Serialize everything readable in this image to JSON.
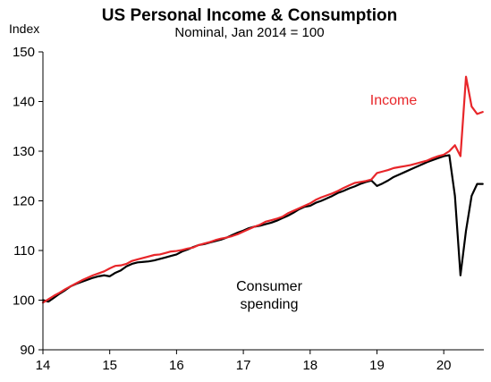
{
  "chart_data": {
    "type": "line",
    "title": "US Personal Income & Consumption",
    "subtitle": "Nominal,  Jan 2014 = 100",
    "ylabel": "Index",
    "xlabel": "",
    "ylim": [
      90,
      150
    ],
    "yticks": [
      90,
      100,
      110,
      120,
      130,
      140,
      150
    ],
    "xlim": [
      2014,
      2020.6
    ],
    "xticks": [
      2014,
      2015,
      2016,
      2017,
      2018,
      2019,
      2020
    ],
    "xtick_labels": [
      "14",
      "15",
      "16",
      "17",
      "18",
      "19",
      "20"
    ],
    "grid": false,
    "legend": "none",
    "series": [
      {
        "name": "Income",
        "color": "#e8262a",
        "x": [
          2014.0,
          2014.083,
          2014.167,
          2014.25,
          2014.333,
          2014.417,
          2014.5,
          2014.583,
          2014.667,
          2014.75,
          2014.833,
          2014.917,
          2015.0,
          2015.083,
          2015.167,
          2015.25,
          2015.333,
          2015.417,
          2015.5,
          2015.583,
          2015.667,
          2015.75,
          2015.833,
          2015.917,
          2016.0,
          2016.083,
          2016.167,
          2016.25,
          2016.333,
          2016.417,
          2016.5,
          2016.583,
          2016.667,
          2016.75,
          2016.833,
          2016.917,
          2017.0,
          2017.083,
          2017.167,
          2017.25,
          2017.333,
          2017.417,
          2017.5,
          2017.583,
          2017.667,
          2017.75,
          2017.833,
          2017.917,
          2018.0,
          2018.083,
          2018.167,
          2018.25,
          2018.333,
          2018.417,
          2018.5,
          2018.583,
          2018.667,
          2018.75,
          2018.833,
          2018.917,
          2019.0,
          2019.083,
          2019.167,
          2019.25,
          2019.333,
          2019.417,
          2019.5,
          2019.583,
          2019.667,
          2019.75,
          2019.833,
          2019.917,
          2020.0,
          2020.083,
          2020.167,
          2020.25,
          2020.333,
          2020.417,
          2020.5,
          2020.583
        ],
        "values": [
          99.5,
          100.2,
          100.9,
          101.5,
          102.2,
          102.8,
          103.4,
          104.0,
          104.5,
          105.0,
          105.4,
          105.8,
          106.4,
          106.9,
          107.0,
          107.3,
          107.9,
          108.2,
          108.5,
          108.8,
          109.1,
          109.2,
          109.5,
          109.8,
          109.9,
          110.1,
          110.4,
          110.6,
          111.1,
          111.4,
          111.7,
          112.1,
          112.4,
          112.6,
          112.9,
          113.3,
          113.8,
          114.3,
          114.8,
          115.2,
          115.8,
          116.1,
          116.4,
          116.8,
          117.5,
          118.0,
          118.5,
          119.0,
          119.5,
          120.2,
          120.7,
          121.1,
          121.5,
          122.0,
          122.6,
          123.1,
          123.6,
          123.8,
          124.0,
          124.3,
          125.6,
          125.9,
          126.2,
          126.6,
          126.8,
          127.0,
          127.2,
          127.5,
          127.8,
          128.1,
          128.6,
          129.0,
          129.3,
          130.0,
          131.2,
          129.0,
          145.0,
          139.0,
          137.5,
          137.9
        ]
      },
      {
        "name": "Consumer spending",
        "color": "#000000",
        "x": [
          2014.0,
          2014.083,
          2014.167,
          2014.25,
          2014.333,
          2014.417,
          2014.5,
          2014.583,
          2014.667,
          2014.75,
          2014.833,
          2014.917,
          2015.0,
          2015.083,
          2015.167,
          2015.25,
          2015.333,
          2015.417,
          2015.5,
          2015.583,
          2015.667,
          2015.75,
          2015.833,
          2015.917,
          2016.0,
          2016.083,
          2016.167,
          2016.25,
          2016.333,
          2016.417,
          2016.5,
          2016.583,
          2016.667,
          2016.75,
          2016.833,
          2016.917,
          2017.0,
          2017.083,
          2017.167,
          2017.25,
          2017.333,
          2017.417,
          2017.5,
          2017.583,
          2017.667,
          2017.75,
          2017.833,
          2017.917,
          2018.0,
          2018.083,
          2018.167,
          2018.25,
          2018.333,
          2018.417,
          2018.5,
          2018.583,
          2018.667,
          2018.75,
          2018.833,
          2018.917,
          2019.0,
          2019.083,
          2019.167,
          2019.25,
          2019.333,
          2019.417,
          2019.5,
          2019.583,
          2019.667,
          2019.75,
          2019.833,
          2019.917,
          2020.0,
          2020.083,
          2020.167,
          2020.25,
          2020.333,
          2020.417,
          2020.5,
          2020.583
        ],
        "values": [
          100.0,
          99.7,
          100.5,
          101.3,
          102.0,
          102.8,
          103.3,
          103.7,
          104.1,
          104.5,
          104.8,
          105.0,
          104.8,
          105.5,
          106.0,
          106.8,
          107.3,
          107.6,
          107.7,
          107.8,
          108.0,
          108.3,
          108.6,
          108.9,
          109.2,
          109.8,
          110.2,
          110.7,
          111.1,
          111.3,
          111.6,
          111.9,
          112.2,
          112.6,
          113.1,
          113.6,
          114.0,
          114.5,
          114.8,
          115.0,
          115.3,
          115.6,
          116.0,
          116.5,
          117.0,
          117.6,
          118.3,
          118.8,
          119.0,
          119.6,
          120.0,
          120.5,
          121.0,
          121.6,
          122.0,
          122.5,
          122.9,
          123.4,
          123.8,
          124.1,
          123.0,
          123.5,
          124.1,
          124.8,
          125.3,
          125.8,
          126.3,
          126.8,
          127.3,
          127.8,
          128.2,
          128.6,
          129.0,
          129.2,
          121.0,
          105.0,
          114.0,
          121.0,
          123.4,
          123.4
        ]
      }
    ],
    "annotations": [
      {
        "name": "Income",
        "color": "#e8262a",
        "lines": [
          "Income"
        ]
      },
      {
        "name": "Consumer spending",
        "color": "#000000",
        "lines": [
          "Consumer",
          "spending"
        ]
      }
    ]
  }
}
